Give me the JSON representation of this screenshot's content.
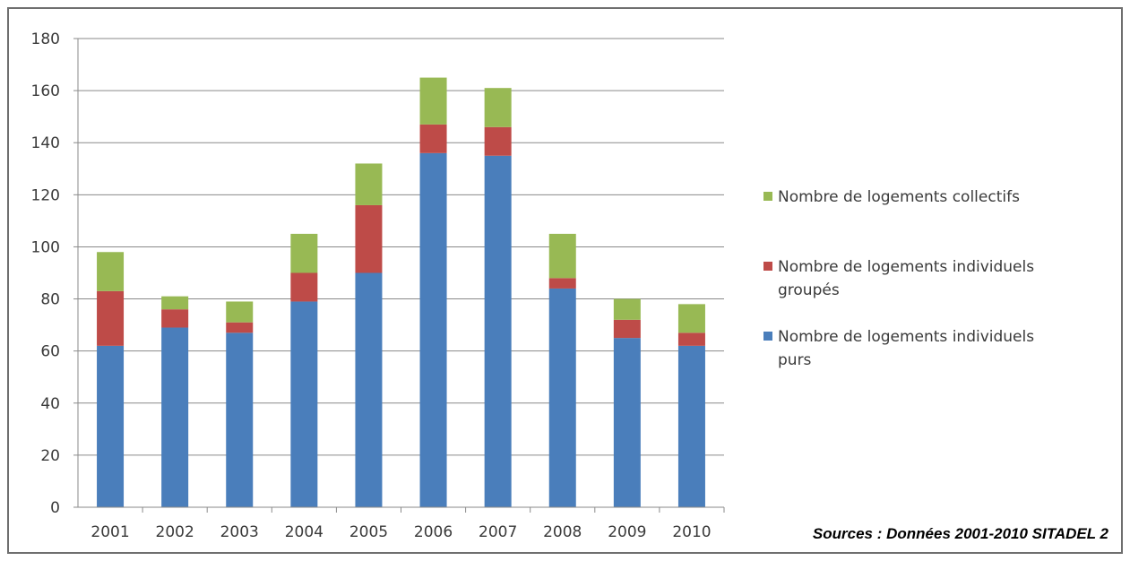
{
  "chart_data": {
    "type": "bar",
    "stacked": true,
    "title": "",
    "xlabel": "",
    "ylabel": "",
    "ylim": [
      0,
      180
    ],
    "yticks": [
      0,
      20,
      40,
      60,
      80,
      100,
      120,
      140,
      160,
      180
    ],
    "grid": true,
    "legend_position": "right",
    "categories": [
      "2001",
      "2002",
      "2003",
      "2004",
      "2005",
      "2006",
      "2007",
      "2008",
      "2009",
      "2010"
    ],
    "series": [
      {
        "name": "Nombre de logements individuels purs",
        "color": "#4a7ebb",
        "values": [
          62,
          69,
          67,
          79,
          90,
          136,
          135,
          84,
          65,
          62
        ]
      },
      {
        "name": "Nombre de logements individuels groupés",
        "color": "#be4b48",
        "values": [
          21,
          7,
          4,
          11,
          26,
          11,
          11,
          4,
          7,
          5
        ]
      },
      {
        "name": "Nombre de logements collectifs",
        "color": "#98b954",
        "values": [
          15,
          5,
          8,
          15,
          16,
          18,
          15,
          17,
          8,
          11
        ]
      }
    ],
    "legend": [
      {
        "series": 2,
        "lines": [
          "Nombre de logements collectifs"
        ]
      },
      {
        "series": 1,
        "lines": [
          "Nombre de logements individuels",
          "groupés"
        ]
      },
      {
        "series": 0,
        "lines": [
          "Nombre de logements individuels",
          "purs"
        ]
      }
    ]
  },
  "source_note": "Sources : Données  2001-2010 SITADEL 2"
}
